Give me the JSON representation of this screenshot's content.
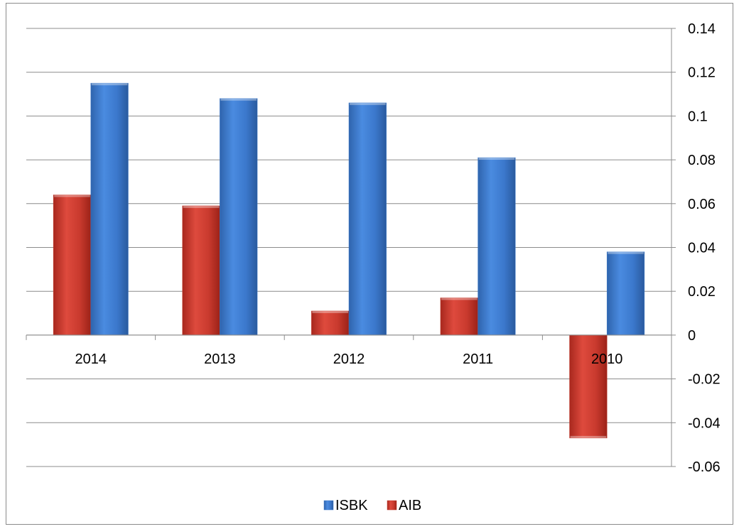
{
  "chart_data": {
    "type": "bar",
    "categories": [
      "2014",
      "2013",
      "2012",
      "2011",
      "2010"
    ],
    "series": [
      {
        "name": "AIB",
        "values": [
          0.064,
          0.059,
          0.011,
          0.017,
          -0.047
        ],
        "color": "#c0392b"
      },
      {
        "name": "ISBK",
        "values": [
          0.115,
          0.108,
          0.106,
          0.081,
          0.038
        ],
        "color": "#3a78c9"
      }
    ],
    "legend_order": [
      "ISBK",
      "AIB"
    ],
    "ylim": [
      -0.06,
      0.14
    ],
    "y_ticks": [
      "0.14",
      "0.12",
      "0.1",
      "0.08",
      "0.06",
      "0.04",
      "0.02",
      "0",
      "-0.02",
      "-0.04",
      "-0.06"
    ],
    "y_axis_side": "right",
    "grid": true,
    "legend_position": "bottom",
    "title": "",
    "xlabel": "",
    "ylabel": ""
  }
}
